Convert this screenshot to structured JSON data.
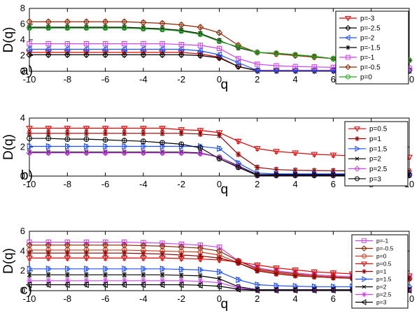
{
  "chart_data": [
    {
      "type": "line",
      "panel_label": "a)",
      "xlabel": "q",
      "ylabel": "D(q)",
      "xlim": [
        -10,
        10
      ],
      "ylim": [
        0,
        8
      ],
      "xticks": [
        -10,
        -8,
        -6,
        -4,
        -2,
        0,
        2,
        4,
        6,
        8,
        10
      ],
      "yticks": [
        0,
        2,
        4,
        6,
        8
      ],
      "grid": false,
      "legend_position": "right",
      "x": [
        -10,
        -9,
        -8,
        -7,
        -6,
        -5,
        -4,
        -3,
        -2,
        -1,
        0,
        1,
        2,
        3,
        4,
        5,
        6,
        7,
        8,
        9,
        10
      ],
      "series": [
        {
          "name": "p=-3",
          "color": "#e00000",
          "marker": "triangle-down",
          "values": [
            2.4,
            2.4,
            2.4,
            2.4,
            2.4,
            2.4,
            2.4,
            2.4,
            2.4,
            2.2,
            1.8,
            0.6,
            0.05,
            0.05,
            0.05,
            0.05,
            0.05,
            0.05,
            0.05,
            0.05,
            0.05
          ]
        },
        {
          "name": "p=-2.5",
          "color": "#000000",
          "marker": "diamond",
          "values": [
            2.1,
            2.1,
            2.1,
            2.1,
            2.1,
            2.1,
            2.1,
            2.1,
            2.1,
            2.0,
            1.7,
            0.6,
            0.1,
            0.1,
            0.1,
            0.1,
            0.1,
            0.1,
            0.1,
            0.1,
            0.1
          ]
        },
        {
          "name": "p=-2",
          "color": "#1f4fff",
          "marker": "triangle-left",
          "values": [
            2.8,
            2.8,
            2.8,
            2.8,
            2.8,
            2.8,
            2.8,
            2.8,
            2.8,
            2.6,
            2.1,
            1.1,
            0.1,
            0.1,
            0.1,
            0.1,
            0.1,
            0.1,
            0.1,
            0.1,
            0.1
          ]
        },
        {
          "name": "p=-1.5",
          "color": "#000000",
          "marker": "star",
          "values": [
            5.6,
            5.6,
            5.6,
            5.6,
            5.6,
            5.6,
            5.5,
            5.4,
            5.2,
            4.8,
            3.9,
            3.0,
            2.4,
            2.3,
            2.1,
            1.9,
            1.6,
            1.5,
            1.5,
            1.4,
            1.4
          ]
        },
        {
          "name": "p=-1",
          "color": "#cc44ee",
          "marker": "square",
          "values": [
            3.5,
            3.5,
            3.5,
            3.5,
            3.5,
            3.5,
            3.5,
            3.5,
            3.4,
            3.3,
            2.9,
            1.6,
            0.9,
            0.7,
            0.6,
            0.55,
            0.5,
            0.45,
            0.45,
            0.45,
            0.4
          ]
        },
        {
          "name": "p=-0.5",
          "color": "#8b2500",
          "marker": "diamond",
          "values": [
            6.3,
            6.3,
            6.3,
            6.3,
            6.3,
            6.3,
            6.2,
            6.1,
            5.9,
            5.6,
            4.9,
            3.3,
            2.4,
            2.2,
            2.0,
            1.8,
            1.6,
            1.5,
            1.5,
            1.4,
            1.4
          ]
        },
        {
          "name": "p=0",
          "color": "#22aa22",
          "marker": "circle",
          "values": [
            5.5,
            5.5,
            5.5,
            5.5,
            5.5,
            5.5,
            5.4,
            5.3,
            5.1,
            4.7,
            3.8,
            3.1,
            2.4,
            2.3,
            2.1,
            1.9,
            1.6,
            1.5,
            1.5,
            1.4,
            1.4
          ]
        }
      ]
    },
    {
      "type": "line",
      "panel_label": "b)",
      "xlabel": "q",
      "ylabel": "D(q)",
      "xlim": [
        -10,
        10
      ],
      "ylim": [
        0,
        4
      ],
      "xticks": [
        -10,
        -8,
        -6,
        -4,
        -2,
        0,
        2,
        4,
        6,
        8,
        10
      ],
      "yticks": [
        0,
        2,
        4
      ],
      "grid": false,
      "legend_position": "right",
      "x": [
        -10,
        -9,
        -8,
        -7,
        -6,
        -5,
        -4,
        -3,
        -2,
        -1,
        0,
        1,
        2,
        3,
        4,
        5,
        6,
        7,
        8,
        9,
        10
      ],
      "series": [
        {
          "name": "p=0.5",
          "color": "#e00000",
          "marker": "triangle-down",
          "values": [
            3.3,
            3.3,
            3.3,
            3.3,
            3.3,
            3.3,
            3.3,
            3.3,
            3.2,
            3.15,
            3.0,
            2.4,
            1.9,
            1.7,
            1.6,
            1.5,
            1.45,
            1.4,
            1.35,
            1.35,
            1.3
          ]
        },
        {
          "name": "p=1",
          "color": "#8b0000",
          "marker": "star",
          "values": [
            2.95,
            2.95,
            2.95,
            2.95,
            2.95,
            2.95,
            2.95,
            2.95,
            2.95,
            2.9,
            2.8,
            1.5,
            0.6,
            0.45,
            0.4,
            0.38,
            0.37,
            0.36,
            0.35,
            0.35,
            0.35
          ]
        },
        {
          "name": "p=1.5",
          "color": "#1f4fff",
          "marker": "triangle-right",
          "values": [
            2.05,
            2.05,
            2.05,
            2.05,
            2.05,
            2.05,
            2.05,
            2.05,
            2.05,
            2.05,
            1.9,
            0.9,
            0.2,
            0.15,
            0.15,
            0.15,
            0.15,
            0.15,
            0.15,
            0.15,
            0.15
          ]
        },
        {
          "name": "p=2",
          "color": "#000000",
          "marker": "x",
          "values": [
            1.65,
            1.65,
            1.65,
            1.65,
            1.65,
            1.65,
            1.65,
            1.65,
            1.65,
            1.6,
            1.3,
            0.7,
            0.1,
            0.1,
            0.1,
            0.1,
            0.1,
            0.1,
            0.1,
            0.1,
            0.1
          ]
        },
        {
          "name": "p=2.5",
          "color": "#cc44ee",
          "marker": "diamond",
          "values": [
            1.6,
            1.6,
            1.6,
            1.6,
            1.6,
            1.6,
            1.6,
            1.6,
            1.6,
            1.55,
            1.3,
            0.65,
            0.05,
            0.05,
            0.05,
            0.05,
            0.05,
            0.05,
            0.05,
            0.05,
            0.05
          ]
        },
        {
          "name": "p=3",
          "color": "#000000",
          "marker": "circle",
          "values": [
            2.6,
            2.6,
            2.55,
            2.55,
            2.5,
            2.45,
            2.4,
            2.3,
            2.2,
            1.95,
            1.2,
            0.6,
            0.05,
            0.05,
            0.05,
            0.05,
            0.05,
            0.05,
            0.05,
            0.05,
            0.05
          ]
        }
      ]
    },
    {
      "type": "line",
      "panel_label": "c)",
      "xlabel": "q",
      "ylabel": "D(q)",
      "xlim": [
        -10,
        10
      ],
      "ylim": [
        0,
        6
      ],
      "xticks": [
        -10,
        -8,
        -6,
        -4,
        -2,
        0,
        2,
        4,
        6,
        8,
        10
      ],
      "yticks": [
        0,
        2,
        4,
        6
      ],
      "grid": false,
      "legend_position": "right",
      "x": [
        -10,
        -9,
        -8,
        -7,
        -6,
        -5,
        -4,
        -3,
        -2,
        -1,
        0,
        1,
        2,
        3,
        4,
        5,
        6,
        7,
        8,
        9,
        10
      ],
      "series": [
        {
          "name": "p=-1",
          "color": "#cc44ee",
          "marker": "square",
          "values": [
            4.9,
            4.9,
            4.9,
            4.9,
            4.9,
            4.9,
            4.85,
            4.8,
            4.7,
            4.6,
            4.4,
            3.0,
            2.3,
            2.0,
            1.8,
            1.6,
            1.5,
            1.4,
            1.35,
            1.3,
            1.3
          ]
        },
        {
          "name": "p=-0.5",
          "color": "#8b2500",
          "marker": "diamond",
          "values": [
            4.6,
            4.6,
            4.6,
            4.6,
            4.6,
            4.6,
            4.55,
            4.5,
            4.4,
            4.3,
            4.0,
            3.0,
            2.2,
            1.9,
            1.7,
            1.5,
            1.4,
            1.3,
            1.25,
            1.2,
            1.2
          ]
        },
        {
          "name": "p=0",
          "color": "#d04020",
          "marker": "circle",
          "values": [
            4.1,
            4.1,
            4.1,
            4.1,
            4.1,
            4.1,
            4.05,
            4.0,
            3.95,
            3.9,
            3.6,
            2.8,
            2.1,
            1.8,
            1.6,
            1.5,
            1.4,
            1.3,
            1.25,
            1.2,
            1.2
          ]
        },
        {
          "name": "p=0.5",
          "color": "#e00000",
          "marker": "triangle-down",
          "values": [
            3.3,
            3.3,
            3.3,
            3.3,
            3.3,
            3.3,
            3.3,
            3.3,
            3.25,
            3.2,
            3.1,
            2.9,
            2.6,
            2.3,
            2.1,
            1.9,
            1.8,
            1.7,
            1.6,
            1.55,
            1.5
          ]
        },
        {
          "name": "p=1",
          "color": "#8b0000",
          "marker": "star",
          "values": [
            3.8,
            3.8,
            3.8,
            3.8,
            3.8,
            3.8,
            3.75,
            3.7,
            3.6,
            3.5,
            3.3,
            2.8,
            2.0,
            1.7,
            1.5,
            1.4,
            1.3,
            1.25,
            1.2,
            1.2,
            1.2
          ]
        },
        {
          "name": "p=1.5",
          "color": "#1f4fff",
          "marker": "triangle-right",
          "values": [
            2.2,
            2.2,
            2.2,
            2.2,
            2.2,
            2.2,
            2.2,
            2.2,
            2.15,
            2.1,
            1.9,
            1.1,
            0.6,
            0.5,
            0.45,
            0.4,
            0.4,
            0.4,
            0.4,
            0.4,
            0.4
          ]
        },
        {
          "name": "p=2",
          "color": "#000000",
          "marker": "x",
          "values": [
            1.6,
            1.6,
            1.6,
            1.6,
            1.6,
            1.6,
            1.6,
            1.6,
            1.55,
            1.5,
            1.2,
            0.4,
            0.1,
            0.1,
            0.1,
            0.1,
            0.1,
            0.1,
            0.1,
            0.1,
            0.1
          ]
        },
        {
          "name": "p=2.5",
          "color": "#cc44ee",
          "marker": "star",
          "values": [
            1.0,
            1.0,
            1.0,
            1.0,
            1.0,
            1.0,
            1.0,
            1.0,
            1.0,
            0.95,
            0.8,
            0.3,
            0.05,
            0.05,
            0.05,
            0.05,
            0.05,
            0.05,
            0.05,
            0.05,
            0.05
          ]
        },
        {
          "name": "p=3",
          "color": "#000000",
          "marker": "triangle-left",
          "values": [
            0.6,
            0.6,
            0.6,
            0.6,
            0.6,
            0.6,
            0.6,
            0.6,
            0.6,
            0.55,
            0.45,
            0.15,
            0.05,
            0.05,
            0.05,
            0.05,
            0.05,
            0.05,
            0.05,
            0.05,
            0.05
          ]
        }
      ]
    }
  ]
}
